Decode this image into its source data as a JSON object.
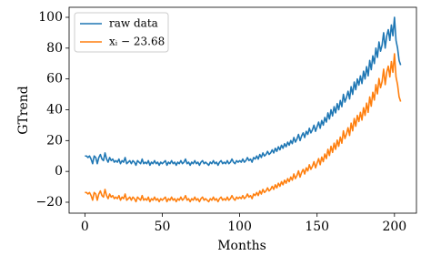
{
  "chart_data": {
    "type": "line",
    "xlabel": "Months",
    "ylabel": "GTrend",
    "x": [
      0,
      1,
      2,
      3,
      4,
      5,
      6,
      7,
      8,
      9,
      10,
      11,
      12,
      13,
      14,
      15,
      16,
      17,
      18,
      19,
      20,
      21,
      22,
      23,
      24,
      25,
      26,
      27,
      28,
      29,
      30,
      31,
      32,
      33,
      34,
      35,
      36,
      37,
      38,
      39,
      40,
      41,
      42,
      43,
      44,
      45,
      46,
      47,
      48,
      49,
      50,
      51,
      52,
      53,
      54,
      55,
      56,
      57,
      58,
      59,
      60,
      61,
      62,
      63,
      64,
      65,
      66,
      67,
      68,
      69,
      70,
      71,
      72,
      73,
      74,
      75,
      76,
      77,
      78,
      79,
      80,
      81,
      82,
      83,
      84,
      85,
      86,
      87,
      88,
      89,
      90,
      91,
      92,
      93,
      94,
      95,
      96,
      97,
      98,
      99,
      100,
      101,
      102,
      103,
      104,
      105,
      106,
      107,
      108,
      109,
      110,
      111,
      112,
      113,
      114,
      115,
      116,
      117,
      118,
      119,
      120,
      121,
      122,
      123,
      124,
      125,
      126,
      127,
      128,
      129,
      130,
      131,
      132,
      133,
      134,
      135,
      136,
      137,
      138,
      139,
      140,
      141,
      142,
      143,
      144,
      145,
      146,
      147,
      148,
      149,
      150,
      151,
      152,
      153,
      154,
      155,
      156,
      157,
      158,
      159,
      160,
      161,
      162,
      163,
      164,
      165,
      166,
      167,
      168,
      169,
      170,
      171,
      172,
      173,
      174,
      175,
      176,
      177,
      178,
      179,
      180,
      181,
      182,
      183,
      184,
      185,
      186,
      187,
      188,
      189,
      190,
      191,
      192,
      193,
      194,
      195,
      196,
      197,
      198,
      199,
      200,
      201,
      202,
      203,
      204
    ],
    "series": [
      {
        "name": "raw data",
        "color": "#1f77b4",
        "values": [
          10,
          10,
          9,
          10,
          8,
          5,
          10,
          9,
          5,
          9,
          11,
          8,
          7,
          12,
          8,
          6,
          9,
          7,
          8,
          6,
          7,
          6,
          8,
          5,
          7,
          6,
          9,
          5,
          6,
          7,
          5,
          7,
          6,
          4,
          7,
          6,
          5,
          8,
          5,
          6,
          5,
          7,
          4,
          6,
          5,
          7,
          5,
          6,
          4,
          6,
          5,
          6,
          7,
          4,
          6,
          5,
          7,
          5,
          6,
          4,
          6,
          5,
          7,
          5,
          6,
          8,
          5,
          6,
          4,
          6,
          5,
          7,
          5,
          6,
          4,
          6,
          7,
          5,
          6,
          5,
          4,
          6,
          5,
          7,
          5,
          6,
          4,
          6,
          7,
          5,
          6,
          5,
          7,
          5,
          6,
          8,
          6,
          5,
          7,
          6,
          7,
          6,
          8,
          6,
          7,
          9,
          7,
          8,
          6,
          9,
          8,
          10,
          8,
          11,
          9,
          12,
          10,
          11,
          13,
          11,
          12,
          14,
          12,
          15,
          13,
          16,
          14,
          17,
          15,
          18,
          16,
          19,
          17,
          20,
          18,
          22,
          19,
          21,
          24,
          20,
          23,
          25,
          22,
          26,
          24,
          28,
          25,
          27,
          30,
          26,
          29,
          32,
          28,
          33,
          30,
          35,
          32,
          38,
          34,
          40,
          36,
          42,
          38,
          44,
          40,
          46,
          42,
          50,
          45,
          48,
          52,
          47,
          55,
          50,
          58,
          53,
          60,
          56,
          62,
          57,
          65,
          60,
          68,
          62,
          72,
          66,
          75,
          70,
          80,
          74,
          84,
          78,
          82,
          90,
          80,
          88,
          92,
          85,
          95,
          88,
          100,
          85,
          80,
          72,
          69
        ]
      },
      {
        "name": "xᵢ − 23.68",
        "color": "#ff7f0e",
        "values": [
          -13.68,
          -13.68,
          -14.68,
          -13.68,
          -15.68,
          -18.68,
          -13.68,
          -14.68,
          -18.68,
          -14.68,
          -12.68,
          -15.68,
          -16.68,
          -11.68,
          -15.68,
          -17.68,
          -14.68,
          -16.68,
          -15.68,
          -17.68,
          -16.68,
          -17.68,
          -15.68,
          -18.68,
          -16.68,
          -17.68,
          -14.68,
          -18.68,
          -17.68,
          -16.68,
          -18.68,
          -16.68,
          -17.68,
          -19.68,
          -16.68,
          -17.68,
          -18.68,
          -15.68,
          -18.68,
          -17.68,
          -18.68,
          -16.68,
          -19.68,
          -17.68,
          -18.68,
          -16.68,
          -18.68,
          -17.68,
          -19.68,
          -17.68,
          -18.68,
          -17.68,
          -16.68,
          -19.68,
          -17.68,
          -18.68,
          -16.68,
          -18.68,
          -17.68,
          -19.68,
          -17.68,
          -18.68,
          -16.68,
          -18.68,
          -17.68,
          -15.68,
          -18.68,
          -17.68,
          -19.68,
          -17.68,
          -18.68,
          -16.68,
          -18.68,
          -17.68,
          -19.68,
          -17.68,
          -16.68,
          -18.68,
          -17.68,
          -18.68,
          -19.68,
          -17.68,
          -18.68,
          -16.68,
          -18.68,
          -17.68,
          -19.68,
          -17.68,
          -16.68,
          -18.68,
          -17.68,
          -18.68,
          -16.68,
          -18.68,
          -17.68,
          -15.68,
          -17.68,
          -18.68,
          -16.68,
          -17.68,
          -16.68,
          -17.68,
          -15.68,
          -17.68,
          -16.68,
          -14.68,
          -16.68,
          -15.68,
          -17.68,
          -14.68,
          -15.68,
          -13.68,
          -15.68,
          -12.68,
          -14.68,
          -11.68,
          -13.68,
          -12.68,
          -10.68,
          -12.68,
          -11.68,
          -9.68,
          -11.68,
          -8.68,
          -10.68,
          -7.68,
          -9.68,
          -6.68,
          -8.68,
          -5.68,
          -7.68,
          -4.68,
          -6.68,
          -3.68,
          -5.68,
          -1.68,
          -4.68,
          -2.68,
          0.32,
          -3.68,
          -0.68,
          1.32,
          -1.68,
          2.32,
          0.32,
          4.32,
          1.32,
          3.32,
          6.32,
          2.32,
          5.32,
          8.32,
          4.32,
          9.32,
          6.32,
          11.32,
          8.32,
          14.32,
          10.32,
          16.32,
          12.32,
          18.32,
          14.32,
          20.32,
          16.32,
          22.32,
          18.32,
          26.32,
          21.32,
          24.32,
          28.32,
          23.32,
          31.32,
          26.32,
          34.32,
          29.32,
          36.32,
          32.32,
          38.32,
          33.32,
          41.32,
          36.32,
          44.32,
          38.32,
          48.32,
          42.32,
          51.32,
          46.32,
          56.32,
          50.32,
          60.32,
          54.32,
          58.32,
          66.32,
          56.32,
          64.32,
          68.32,
          61.32,
          71.32,
          64.32,
          76.32,
          61.32,
          56.32,
          48.32,
          45.32
        ]
      }
    ],
    "xlim": [
      -10.2,
      214.2
    ],
    "xticks": [
      0,
      50,
      100,
      150,
      200
    ],
    "ylim": [
      -27.1,
      106.5
    ],
    "yticks": [
      {
        "value": -20,
        "label": "−20"
      },
      0,
      20,
      40,
      60,
      80,
      100
    ],
    "legend": "upper left",
    "grid": false
  }
}
